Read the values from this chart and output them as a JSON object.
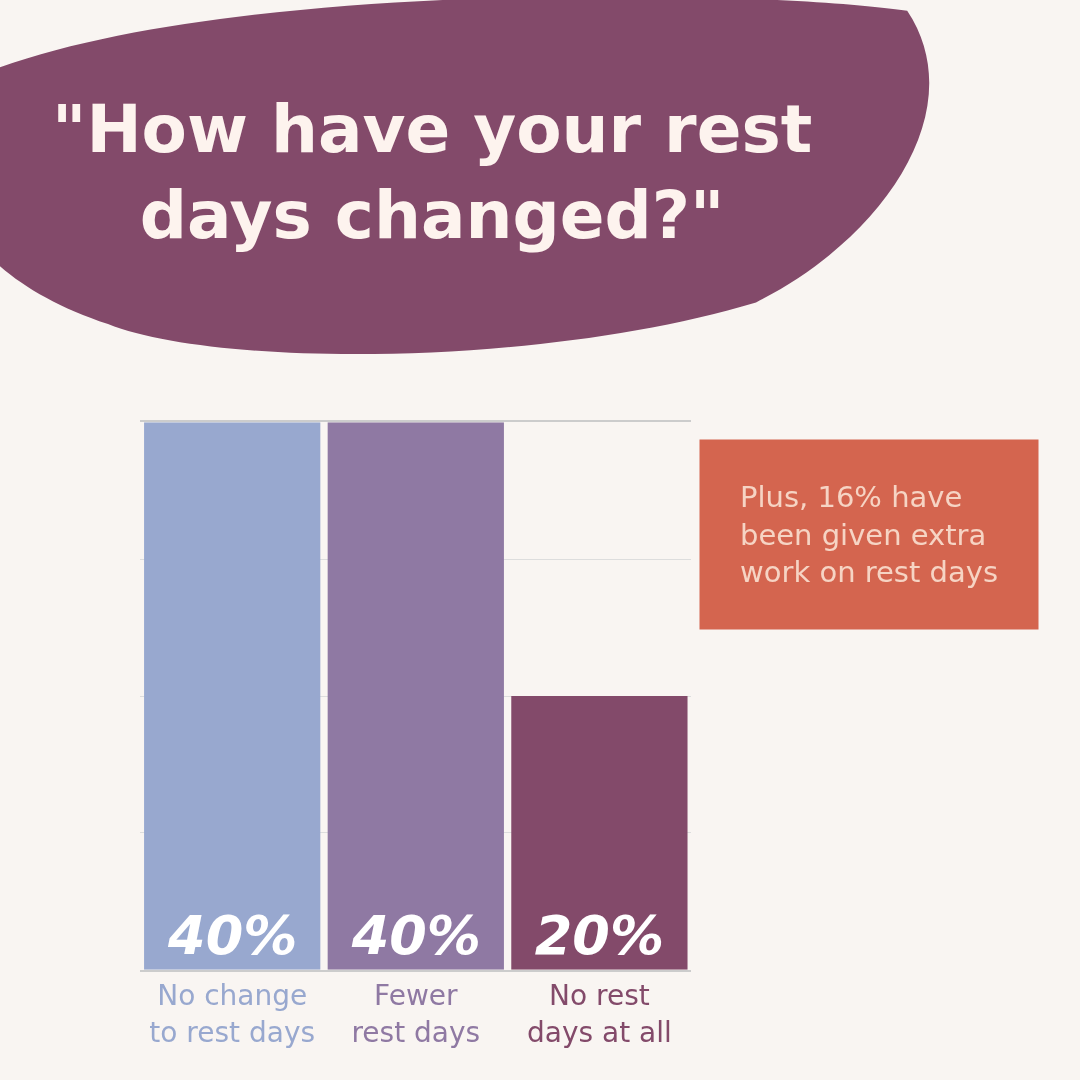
{
  "chart_data": {
    "type": "bar",
    "title": "\"How have your rest\ndays changed?\"",
    "categories": [
      "No change\nto rest days",
      "Fewer\nrest days",
      "No rest\ndays at all"
    ],
    "values": [
      40,
      40,
      20
    ],
    "colors": [
      "#98a8cf",
      "#8f79a3",
      "#834a6a"
    ],
    "value_labels": [
      "40%",
      "40%",
      "20%"
    ],
    "ylim": [
      0,
      40
    ],
    "yticks": [
      {
        "value": 10,
        "label": null
      },
      {
        "value": 20,
        "label": null
      },
      {
        "value": 30,
        "label": null
      },
      {
        "value": 40,
        "label": null
      }
    ],
    "tick_labels": "x",
    "grid": "y",
    "annotations": [
      "Plus, 16% have\nbeen given extra\nwork on rest days"
    ]
  }
}
